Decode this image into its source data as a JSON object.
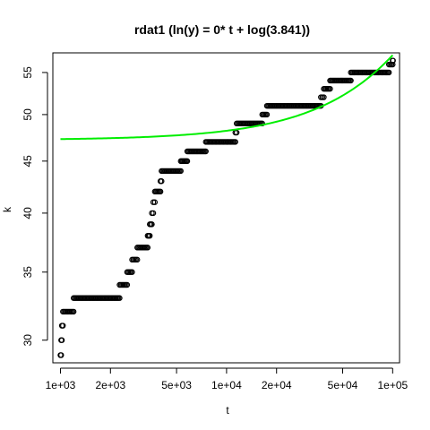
{
  "chart_data": {
    "type": "scatter",
    "title": "rdat1 (ln(y) = 0* t + log(3.841))",
    "xlabel": "t",
    "ylabel": "k",
    "x_scale": "log",
    "y_scale": "log",
    "xlim": [
      900,
      110000
    ],
    "ylim": [
      28.5,
      57.5
    ],
    "x_ticks": [
      {
        "value": 1000,
        "label": "1e+03"
      },
      {
        "value": 2000,
        "label": "2e+03"
      },
      {
        "value": 5000,
        "label": "5e+03"
      },
      {
        "value": 10000,
        "label": "1e+04"
      },
      {
        "value": 20000,
        "label": "2e+04"
      },
      {
        "value": 50000,
        "label": "5e+04"
      },
      {
        "value": 100000,
        "label": "1e+05"
      }
    ],
    "y_ticks": [
      {
        "value": 30,
        "label": "30"
      },
      {
        "value": 35,
        "label": "35"
      },
      {
        "value": 40,
        "label": "40"
      },
      {
        "value": 45,
        "label": "45"
      },
      {
        "value": 50,
        "label": "50"
      },
      {
        "value": 55,
        "label": "55"
      }
    ],
    "grid": false,
    "series": [
      {
        "kind": "points",
        "marker": "open-circle",
        "color": "#000000",
        "steps": [
          {
            "k": 29,
            "t_start": 1000,
            "t_end": 1010
          },
          {
            "k": 30,
            "t_start": 1010,
            "t_end": 1020
          },
          {
            "k": 31,
            "t_start": 1020,
            "t_end": 1035
          },
          {
            "k": 32,
            "t_start": 1035,
            "t_end": 1200
          },
          {
            "k": 33,
            "t_start": 1200,
            "t_end": 2270
          },
          {
            "k": 34,
            "t_start": 2270,
            "t_end": 2520
          },
          {
            "k": 35,
            "t_start": 2520,
            "t_end": 2700
          },
          {
            "k": 36,
            "t_start": 2700,
            "t_end": 2900
          },
          {
            "k": 37,
            "t_start": 2900,
            "t_end": 3350
          },
          {
            "k": 38,
            "t_start": 3350,
            "t_end": 3450
          },
          {
            "k": 39,
            "t_start": 3450,
            "t_end": 3550
          },
          {
            "k": 40,
            "t_start": 3550,
            "t_end": 3620
          },
          {
            "k": 41,
            "t_start": 3620,
            "t_end": 3700
          },
          {
            "k": 42,
            "t_start": 3700,
            "t_end": 4000
          },
          {
            "k": 43,
            "t_start": 4000,
            "t_end": 4060
          },
          {
            "k": 44,
            "t_start": 4060,
            "t_end": 5300
          },
          {
            "k": 45,
            "t_start": 5300,
            "t_end": 5800
          },
          {
            "k": 46,
            "t_start": 5800,
            "t_end": 7500
          },
          {
            "k": 47,
            "t_start": 7500,
            "t_end": 11300
          },
          {
            "k": 48,
            "t_start": 11300,
            "t_end": 11500
          },
          {
            "k": 49,
            "t_start": 11500,
            "t_end": 16400
          },
          {
            "k": 50,
            "t_start": 16400,
            "t_end": 17500
          },
          {
            "k": 51,
            "t_start": 17500,
            "t_end": 37000
          },
          {
            "k": 52,
            "t_start": 37000,
            "t_end": 38500
          },
          {
            "k": 53,
            "t_start": 38500,
            "t_end": 42000
          },
          {
            "k": 54,
            "t_start": 42000,
            "t_end": 56000
          },
          {
            "k": 55,
            "t_start": 56000,
            "t_end": 95000
          },
          {
            "k": 56,
            "t_start": 95000,
            "t_end": 100000
          },
          {
            "k": 56.5,
            "t_start": 100000,
            "t_end": 100500
          }
        ]
      },
      {
        "kind": "line",
        "color": "#00ee00",
        "model": "k = 47.2 + 10 * (t / 100000)",
        "intercept": 47.2,
        "slope_per_1e5": 10,
        "x_range": [
          1000,
          100000
        ]
      }
    ]
  }
}
